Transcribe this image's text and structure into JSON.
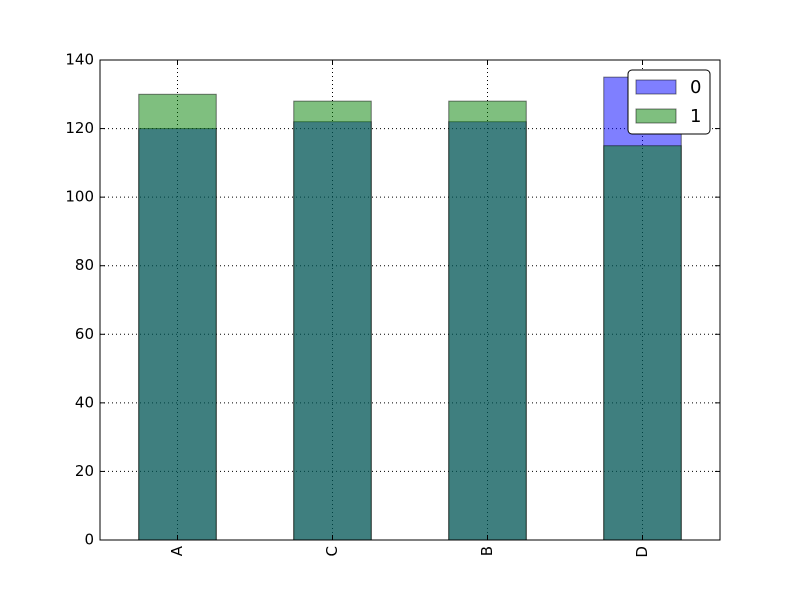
{
  "chart_data": {
    "type": "bar",
    "overlap": true,
    "categories": [
      "A",
      "C",
      "B",
      "D"
    ],
    "series": [
      {
        "name": "0",
        "color": "#0000ff",
        "values": [
          120,
          122,
          122,
          135
        ]
      },
      {
        "name": "1",
        "color": "#008000",
        "values": [
          130,
          128,
          128,
          115
        ]
      }
    ],
    "ylim": [
      0,
      140
    ],
    "yticks": [
      0,
      20,
      40,
      60,
      80,
      100,
      120,
      140
    ],
    "grid": true,
    "legend": "upper right"
  }
}
